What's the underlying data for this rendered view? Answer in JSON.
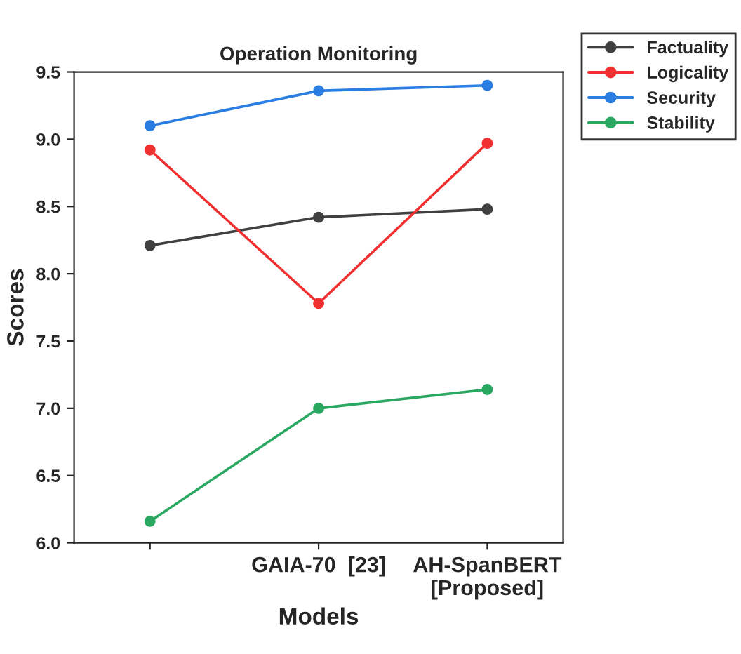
{
  "chart_data": {
    "type": "line",
    "title": "Operation Monitoring",
    "xlabel": "Models",
    "ylabel": "Scores",
    "categories": [
      null,
      "GAIA-70  [23]",
      "AH-SpanBERT\n[Proposed]"
    ],
    "series": [
      {
        "name": "Factuality",
        "color": "#404040",
        "values": [
          8.21,
          8.42,
          8.48
        ]
      },
      {
        "name": "Logicality",
        "color": "#f03030",
        "values": [
          8.92,
          7.78,
          8.97
        ]
      },
      {
        "name": "Security",
        "color": "#2a7de1",
        "values": [
          9.1,
          9.36,
          9.4
        ]
      },
      {
        "name": "Stability",
        "color": "#2aa862",
        "values": [
          6.16,
          7.0,
          7.14
        ]
      }
    ],
    "ylim": [
      6.0,
      9.5
    ],
    "yticks": [
      {
        "value": 6.0,
        "label": "6.0"
      },
      {
        "value": 6.5,
        "label": "6.5"
      },
      {
        "value": 7.0,
        "label": "7.0"
      },
      {
        "value": 7.5,
        "label": "7.5"
      },
      {
        "value": 8.0,
        "label": "8.0"
      },
      {
        "value": 8.5,
        "label": "8.5"
      },
      {
        "value": 9.0,
        "label": "9.0"
      },
      {
        "value": 9.5,
        "label": "9.5"
      }
    ],
    "marker": "circle",
    "line_style": "solid",
    "grid": false,
    "legend": "top right"
  }
}
